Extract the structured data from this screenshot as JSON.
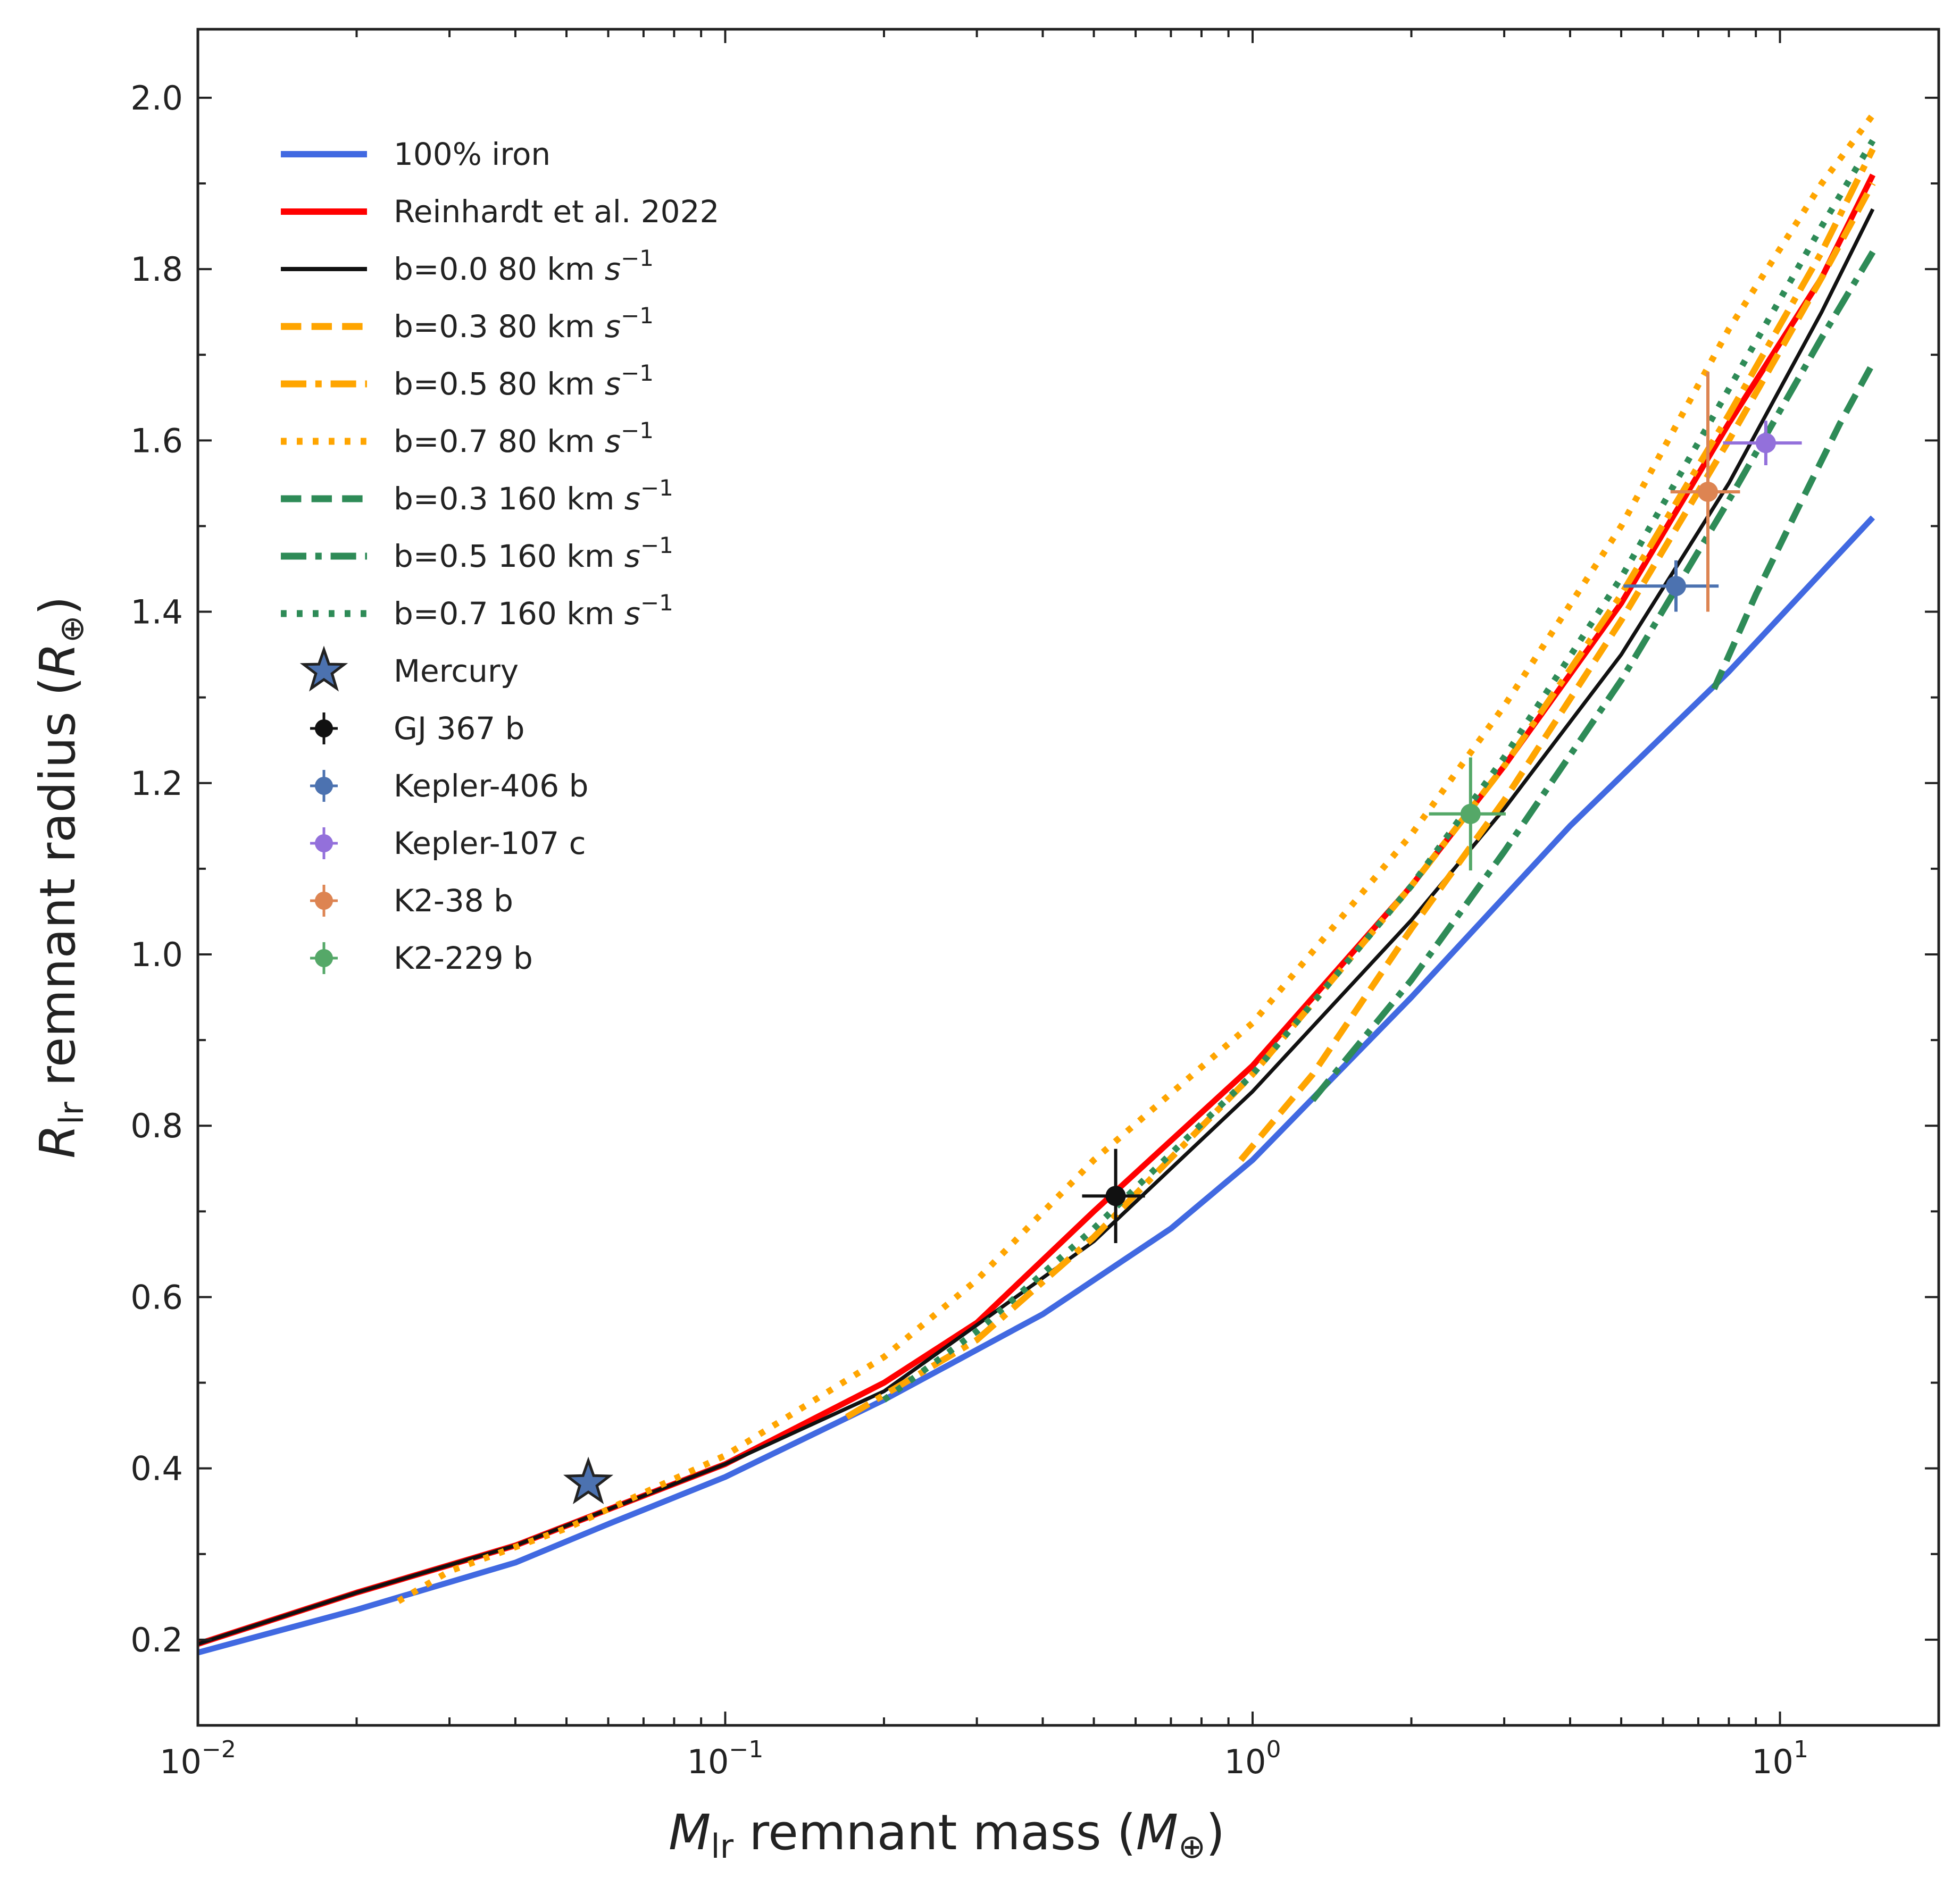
{
  "chart_data": {
    "type": "line",
    "title": "",
    "xlabel": {
      "main": "M",
      "sub": "lr",
      "rest": " remnant mass (",
      "unit": "M",
      "unit_sub": "⊕",
      "close": ")"
    },
    "ylabel": {
      "main": "R",
      "sub": "lr",
      "rest": " remnant radius (",
      "unit": "R",
      "unit_sub": "⊕",
      "close": ")"
    },
    "xscale": "log",
    "xlim": [
      0.01,
      20
    ],
    "ylim": [
      0.1,
      2.08
    ],
    "x_ticks": [
      {
        "value": 0.01,
        "base": "10",
        "exp": "−2"
      },
      {
        "value": 0.1,
        "base": "10",
        "exp": "−1"
      },
      {
        "value": 1,
        "base": "10",
        "exp": "0"
      },
      {
        "value": 10,
        "base": "10",
        "exp": "1"
      }
    ],
    "y_ticks": [
      {
        "value": 0.2,
        "label": "0.2"
      },
      {
        "value": 0.4,
        "label": "0.4"
      },
      {
        "value": 0.6,
        "label": "0.6"
      },
      {
        "value": 0.8,
        "label": "0.8"
      },
      {
        "value": 1.0,
        "label": "1.0"
      },
      {
        "value": 1.2,
        "label": "1.2"
      },
      {
        "value": 1.4,
        "label": "1.4"
      },
      {
        "value": 1.6,
        "label": "1.6"
      },
      {
        "value": 1.8,
        "label": "1.8"
      },
      {
        "value": 2.0,
        "label": "2.0"
      }
    ],
    "legend_position": "upper-left",
    "series": [
      {
        "name": "100% iron",
        "color": "#4169e1",
        "style": "solid",
        "width": 11,
        "x": [
          0.01,
          0.02,
          0.04,
          0.06,
          0.1,
          0.2,
          0.4,
          0.7,
          1.0,
          2.0,
          4.0,
          8.0,
          15.0
        ],
        "y": [
          0.185,
          0.235,
          0.29,
          0.335,
          0.39,
          0.48,
          0.58,
          0.68,
          0.76,
          0.95,
          1.15,
          1.33,
          1.51
        ]
      },
      {
        "name": "Reinhardt et al. 2022",
        "color": "#ff0000",
        "style": "solid",
        "width": 11,
        "x": [
          0.01,
          0.02,
          0.04,
          0.1,
          0.2,
          0.3,
          0.5,
          1.0,
          2.0,
          3.0,
          5.0,
          8.0,
          12.0,
          15.0
        ],
        "y": [
          0.195,
          0.255,
          0.31,
          0.405,
          0.5,
          0.57,
          0.7,
          0.87,
          1.08,
          1.22,
          1.41,
          1.62,
          1.79,
          1.91
        ]
      },
      {
        "name": "b=0.0 80 km ",
        "color": "#111111",
        "style": "solid",
        "width": 7,
        "x": [
          0.01,
          0.02,
          0.04,
          0.1,
          0.2,
          0.5,
          1.0,
          2.0,
          3.0,
          5.0,
          8.0,
          12.0,
          15.0
        ],
        "y": [
          0.195,
          0.255,
          0.31,
          0.405,
          0.49,
          0.665,
          0.84,
          1.04,
          1.17,
          1.35,
          1.55,
          1.75,
          1.87
        ]
      },
      {
        "name": "b=0.3 80 km ",
        "color": "#ffa500",
        "style": "dashed",
        "width": 12,
        "x": [
          0.95,
          1.3,
          2.0,
          3.0,
          5.0,
          8.0,
          12.0,
          15.0
        ],
        "y": [
          0.76,
          0.86,
          1.03,
          1.18,
          1.39,
          1.6,
          1.79,
          1.9
        ]
      },
      {
        "name": "b=0.5 80 km ",
        "color": "#ffa500",
        "style": "dashdot",
        "width": 12,
        "x": [
          0.17,
          0.3,
          0.5,
          1.0,
          2.0,
          3.0,
          5.0,
          8.0,
          12.0,
          15.0
        ],
        "y": [
          0.46,
          0.55,
          0.67,
          0.86,
          1.08,
          1.22,
          1.42,
          1.63,
          1.82,
          1.94
        ]
      },
      {
        "name": "b=0.7 80 km ",
        "color": "#ffa500",
        "style": "dotted",
        "width": 12,
        "x": [
          0.024,
          0.03,
          0.05,
          0.1,
          0.2,
          0.3,
          0.5,
          1.0,
          2.0,
          3.0,
          5.0,
          8.0,
          12.0,
          15.0
        ],
        "y": [
          0.245,
          0.28,
          0.33,
          0.415,
          0.53,
          0.62,
          0.76,
          0.92,
          1.14,
          1.29,
          1.5,
          1.73,
          1.9,
          1.98
        ]
      },
      {
        "name": "b=0.3 160 km ",
        "color": "#2e8b57",
        "style": "dashed",
        "width": 12,
        "x": [
          7.5,
          9.0,
          11.0,
          13.0,
          15.0
        ],
        "y": [
          1.31,
          1.42,
          1.53,
          1.62,
          1.69
        ]
      },
      {
        "name": "b=0.5 160 km ",
        "color": "#2e8b57",
        "style": "dashdot",
        "width": 12,
        "x": [
          1.3,
          2.0,
          3.0,
          5.0,
          8.0,
          12.0,
          15.0
        ],
        "y": [
          0.83,
          0.97,
          1.12,
          1.32,
          1.53,
          1.72,
          1.82
        ]
      },
      {
        "name": "b=0.7 160 km ",
        "color": "#2e8b57",
        "style": "dotted",
        "width": 12,
        "x": [
          0.2,
          0.3,
          0.5,
          1.0,
          2.0,
          3.0,
          5.0,
          8.0,
          12.0,
          15.0
        ],
        "y": [
          0.48,
          0.56,
          0.68,
          0.86,
          1.08,
          1.23,
          1.44,
          1.66,
          1.85,
          1.95
        ]
      }
    ],
    "points": [
      {
        "name": "Mercury",
        "color": "#4c72b0",
        "marker": "star",
        "x": 0.055,
        "y": 0.383
      },
      {
        "name": "GJ 367 b",
        "color": "#111111",
        "marker": "circle",
        "x": 0.55,
        "y": 0.718,
        "xerr": 0.075,
        "yerr": 0.055
      },
      {
        "name": "Kepler-406 b",
        "color": "#4c72b0",
        "marker": "circle",
        "x": 6.35,
        "y": 1.43,
        "xerr": 1.3,
        "yerr": 0.03
      },
      {
        "name": "Kepler-107 c",
        "color": "#9370db",
        "marker": "circle",
        "x": 9.4,
        "y": 1.597,
        "xerr": 1.6,
        "yerr": 0.026
      },
      {
        "name": "K2-38 b",
        "color": "#dd8452",
        "marker": "circle",
        "x": 7.3,
        "y": 1.54,
        "xerr": 1.1,
        "yerr": 0.14
      },
      {
        "name": "K2-229 b",
        "color": "#55a868",
        "marker": "circle",
        "x": 2.59,
        "y": 1.164,
        "xerr": 0.43,
        "yerr": 0.066
      }
    ],
    "legend_units": {
      "sym": "s",
      "exp": "−1"
    }
  }
}
